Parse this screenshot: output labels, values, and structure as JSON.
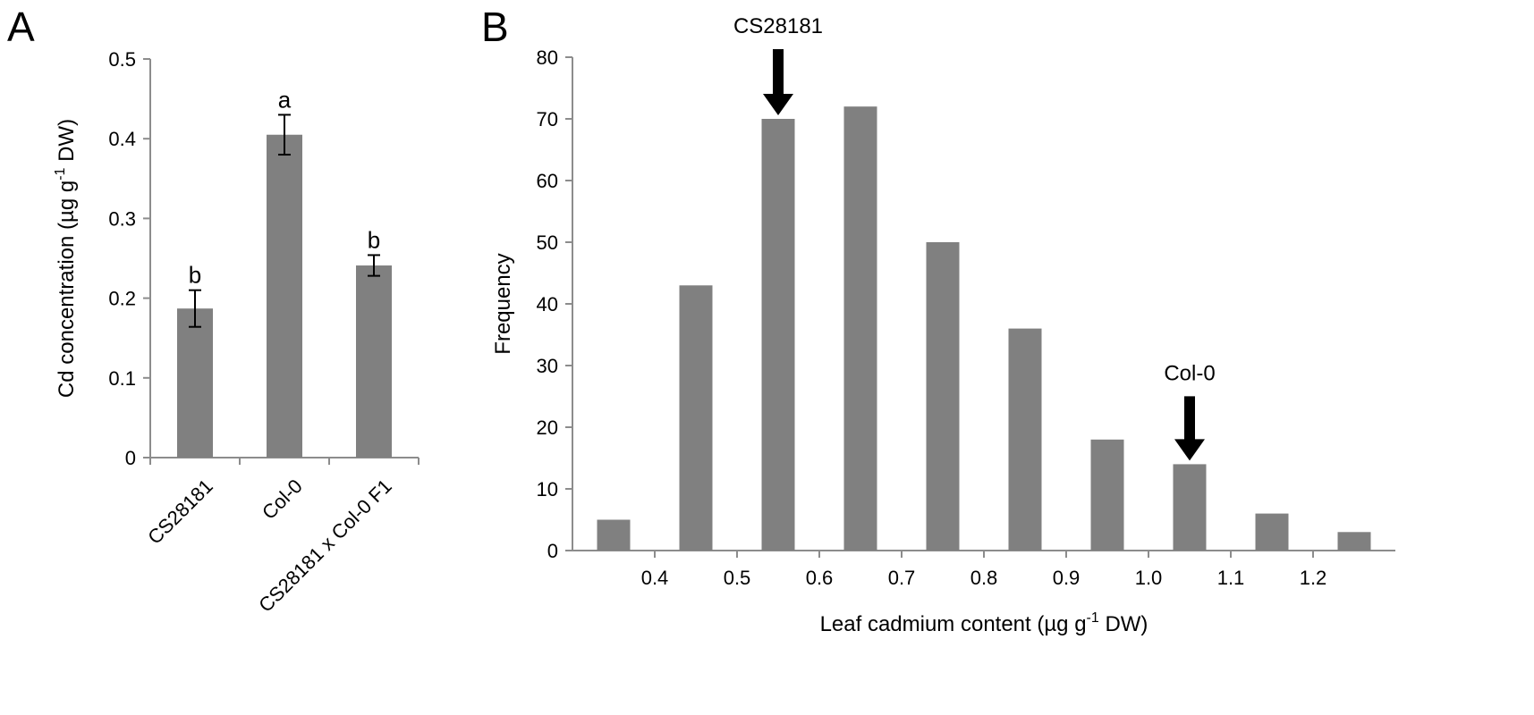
{
  "chart_data": [
    {
      "panel": "A",
      "type": "bar",
      "categories": [
        "CS28181",
        "Col-0",
        "CS28181 x Col-0 F1"
      ],
      "values": [
        0.187,
        0.405,
        0.241
      ],
      "errors": [
        0.023,
        0.025,
        0.013
      ],
      "significance": [
        "b",
        "a",
        "b"
      ],
      "ylabel_prefix": "Cd concentration (µg g",
      "ylabel_sup": "-1",
      "ylabel_suffix": " DW)",
      "xlabel": "",
      "ylim": [
        0,
        0.5
      ],
      "yticks": [
        0,
        0.1,
        0.2,
        0.3,
        0.4,
        0.5
      ],
      "ytick_labels": [
        "0",
        "0.1",
        "0.2",
        "0.3",
        "0.4",
        "0.5"
      ],
      "grid": false,
      "bar_color": "#808080"
    },
    {
      "panel": "B",
      "type": "bar",
      "categories": [
        "0.35",
        "0.45",
        "0.55",
        "0.65",
        "0.75",
        "0.85",
        "0.95",
        "1.05",
        "1.15",
        "1.25"
      ],
      "values": [
        5,
        43,
        70,
        72,
        50,
        36,
        18,
        14,
        6,
        3
      ],
      "xticks": [
        "0.4",
        "0.5",
        "0.6",
        "0.7",
        "0.8",
        "0.9",
        "1.0",
        "1.1",
        "1.2"
      ],
      "ylim": [
        0,
        80
      ],
      "yticks": [
        0,
        10,
        20,
        30,
        40,
        50,
        60,
        70,
        80
      ],
      "ytick_labels": [
        "0",
        "10",
        "20",
        "30",
        "40",
        "50",
        "60",
        "70",
        "80"
      ],
      "ylabel": "Frequency",
      "xlabel_prefix": "Leaf cadmium content (µg g",
      "xlabel_sup": "-1",
      "xlabel_suffix": " DW)",
      "annotations": [
        {
          "text": "CS28181",
          "category_index": 2
        },
        {
          "text": "Col-0",
          "category_index": 7
        }
      ],
      "grid": false,
      "bar_color": "#808080"
    }
  ]
}
